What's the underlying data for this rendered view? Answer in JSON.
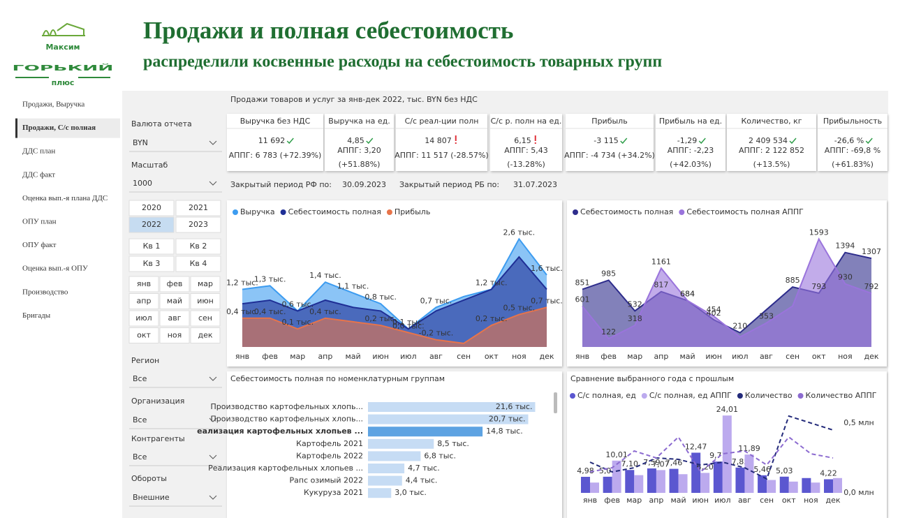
{
  "header": {
    "logo": [
      "Максим",
      "ГОРЬКИЙ",
      "плюс"
    ],
    "title": "Продажи и полная себестоимость",
    "subtitle": "распределили косвенные расходы на себестоимость товарных групп"
  },
  "nav": {
    "items": [
      "Продажи, Выручка",
      "Продажи, С/с полная",
      "ДДС план",
      "ДДС факт",
      "Оценка вып.-я плана ДДС",
      "ОПУ план",
      "ОПУ факт",
      "Оценка вып.-я ОПУ",
      "Производство",
      "Бригады"
    ],
    "active": 1
  },
  "report_title": "Продажи товаров и услуг за янв-дек 2022, тыс. BYN без НДС",
  "filters": {
    "currency": {
      "label": "Валюта отчета",
      "value": "BYN"
    },
    "scale": {
      "label": "Масштаб",
      "value": "1000"
    },
    "years": {
      "items": [
        "2020",
        "2021",
        "2022",
        "2023"
      ],
      "selected": 2
    },
    "quarters": [
      "Кв 1",
      "Кв 2",
      "Кв 3",
      "Кв 4"
    ],
    "months": [
      "янв",
      "фев",
      "мар",
      "апр",
      "май",
      "июн",
      "июл",
      "авг",
      "сен",
      "окт",
      "ноя",
      "дек"
    ],
    "dropdowns": [
      {
        "label": "Регион",
        "value": "Все"
      },
      {
        "label": "Организация",
        "value": "Все"
      },
      {
        "label": "Контрагенты",
        "value": "Все"
      },
      {
        "label": "Обороты",
        "value": "Внешние"
      }
    ]
  },
  "kpis": [
    {
      "title": "Выручка без НДС",
      "value": "11 692",
      "status": "good",
      "notes": [
        "АППГ: 6 783 (+72.39%)"
      ]
    },
    {
      "title": "Выручка на ед.",
      "value": "4,85",
      "status": "good",
      "notes": [
        "АППГ: 3,20",
        "(+51.88%)"
      ]
    },
    {
      "title": "С/с реал-ции полн",
      "value": "14 807",
      "status": "bad",
      "notes": [
        "АППГ: 11 517 (-28.57%)"
      ]
    },
    {
      "title": "С/с р. полн на ед.",
      "value": "6,15",
      "status": "bad",
      "notes": [
        "АППГ: 5,43",
        "(-13.28%)"
      ]
    },
    {
      "title": "Прибыль",
      "value": "-3 115",
      "status": "good",
      "notes": [
        "АППГ: -4 734 (+34.2%)"
      ]
    },
    {
      "title": "Прибыль на ед.",
      "value": "-1,29",
      "status": "good",
      "notes": [
        "АППГ: -2,23",
        "(+42.03%)"
      ]
    },
    {
      "title": "Количество, кг",
      "value": "2 409 534",
      "status": "good",
      "notes": [
        "АППГ: 2 122 852",
        "(+13.5%)"
      ]
    },
    {
      "title": "Прибыльность",
      "value": "-26,6 %",
      "status": "good",
      "notes": [
        "АППГ: -69,8 %",
        "(+61.83%)"
      ]
    }
  ],
  "periods": [
    {
      "label": "Закрытый период РФ по:",
      "date": "30.09.2023"
    },
    {
      "label": "Закрытый период РБ по:",
      "date": "31.07.2023"
    }
  ],
  "chart_data": [
    {
      "type": "area",
      "categories": [
        "янв",
        "фев",
        "мар",
        "апр",
        "май",
        "июн",
        "июл",
        "авг",
        "сен",
        "окт",
        "ноя",
        "дек"
      ],
      "ylim": [
        -0.4,
        2.8
      ],
      "series": [
        {
          "name": "Выручка",
          "color": "#3d9cf0",
          "values": [
            1.2,
            1.3,
            0.6,
            1.4,
            1.1,
            0.8,
            0.1,
            0.7,
            1.0,
            1.2,
            2.6,
            1.6
          ],
          "value_labels": [
            "1,2 тыс.",
            "1,3 тыс.",
            null,
            "1,4 тыс.",
            "1,1 тыс.",
            "0,8 тыс.",
            "0,1 тыс.",
            "0,7 тыс.",
            null,
            "1,2 тыс.",
            "2,6 тыс.",
            "1,6 тыс."
          ]
        },
        {
          "name": "Себестоимость полная",
          "color": "#1f2f96",
          "values": [
            0.8,
            0.9,
            0.6,
            0.9,
            0.7,
            0.6,
            0.1,
            0.6,
            0.9,
            1.2,
            2.1,
            1.2
          ],
          "value_labels": [
            null,
            null,
            "0,6 тыс.",
            null,
            null,
            null,
            null,
            null,
            null,
            null,
            null,
            null
          ]
        },
        {
          "name": "Прибыль",
          "color": "#e8744a",
          "values": [
            0.4,
            0.4,
            0.1,
            0.4,
            0.3,
            0.2,
            0.0,
            -0.2,
            -0.3,
            0.2,
            0.5,
            0.7
          ],
          "value_labels": [
            "0,4 тыс.",
            "0,4 тыс.",
            "0,1 тыс.",
            "0,4 тыс.",
            null,
            "0,2 тыс.",
            "0,0 тыс.",
            "-0,2 тыс.",
            null,
            "0,2 тыс.",
            "0,5 тыс.",
            "0,7 тыс."
          ]
        }
      ]
    },
    {
      "type": "area",
      "categories": [
        "янв",
        "фев",
        "мар",
        "апр",
        "май",
        "июн",
        "июл",
        "авг",
        "сен",
        "окт",
        "ноя",
        "дек"
      ],
      "ylim": [
        0,
        1700
      ],
      "series": [
        {
          "name": "Себестоимость полная",
          "color": "#2e2d8c",
          "values": [
            851,
            985,
            532,
            817,
            684,
            402,
            210,
            548,
            885,
            793,
            1394,
            1307
          ],
          "value_labels": [
            "851",
            "985",
            "532",
            "817",
            "684",
            "402",
            "210",
            null,
            "885",
            "793",
            "1394",
            "1307"
          ]
        },
        {
          "name": "Себестоимость полная АППГ",
          "color": "#9a74dc",
          "values": [
            601,
            122,
            318,
            1161,
            684,
            454,
            148,
            353,
            603,
            1593,
            930,
            792
          ],
          "value_labels": [
            "601",
            "122",
            "318",
            "1161",
            "684",
            "454",
            null,
            "353",
            null,
            "1593",
            "930",
            "792"
          ]
        }
      ]
    },
    {
      "type": "hbar",
      "title": "Себестоимость полная по номенклатурным группам",
      "xlim": [
        0,
        23
      ],
      "color": "#c6dcf4",
      "selected_color": "#5ea3e2",
      "selected": 2,
      "categories": [
        "Производство картофельных хлопь...",
        "Производство картофельных хлопь...",
        "еализация картофельных хлопьев ...",
        "Картофель 2021",
        "Картофель 2022",
        "Реализация картофельных хлопьев ...",
        "Рапс озимый 2022",
        "Кукуруза 2021"
      ],
      "values": [
        21.6,
        20.7,
        14.8,
        8.5,
        6.8,
        4.7,
        4.4,
        3.0
      ],
      "value_labels": [
        "21,6 тыс.",
        "20,7 тыс.",
        "14,8 тыс.",
        "8,5 тыс.",
        "6,8 тыс.",
        "4,7 тыс.",
        "4,4 тыс.",
        "3,0 тыс."
      ]
    },
    {
      "type": "bar-line",
      "title": "Сравнение выбранного года с прошлым",
      "categories": [
        "янв",
        "фев",
        "мар",
        "апр",
        "май",
        "июн",
        "июл",
        "авг",
        "сен",
        "окт",
        "ноя",
        "дек"
      ],
      "ylim": [
        0,
        26
      ],
      "y2lim": [
        0,
        0.6
      ],
      "y2ticks": [
        {
          "value": 0,
          "label": "0,0 млн"
        },
        {
          "value": 0.5,
          "label": "0,5 млн"
        }
      ],
      "series": [
        {
          "name": "С/с полная, ед",
          "kind": "bar",
          "color": "#5b57d0",
          "values": [
            4.98,
            5.01,
            7.1,
            7.59,
            7.46,
            12.47,
            9.71,
            7.85,
            5.46,
            5.03,
            4.6,
            4.22
          ],
          "value_labels": [
            "4,98",
            "5,01",
            "7,10",
            "7,59",
            "7,46",
            "12,47",
            "9,71",
            "7,85",
            "5,46",
            "5,03",
            null,
            "4,22"
          ]
        },
        {
          "name": "С/с полная, ед  АППГ",
          "kind": "bar",
          "color": "#bcaaee",
          "values": [
            3.2,
            10.01,
            5.5,
            7.07,
            5.8,
            6.2,
            24.01,
            11.89,
            4.0,
            3.5,
            3.2,
            4.6
          ],
          "value_labels": [
            null,
            "10,01",
            null,
            "7,07",
            null,
            "6,20",
            "24,01",
            "11,89",
            null,
            null,
            null,
            null
          ]
        },
        {
          "name": "Количество",
          "kind": "line",
          "axis": "y2",
          "dash": true,
          "color": "#232a7a",
          "values": [
            0.22,
            0.15,
            0.18,
            0.25,
            0.24,
            0.2,
            0.22,
            0.18,
            0.1,
            0.55,
            0.5,
            0.45
          ]
        },
        {
          "name": "Количество АППГ",
          "kind": "line",
          "axis": "y2",
          "dash": true,
          "color": "#8c6bd0",
          "values": [
            0.15,
            0.18,
            0.3,
            0.25,
            0.4,
            0.15,
            0.28,
            0.3,
            0.2,
            0.4,
            0.28,
            0.25
          ]
        }
      ]
    }
  ]
}
